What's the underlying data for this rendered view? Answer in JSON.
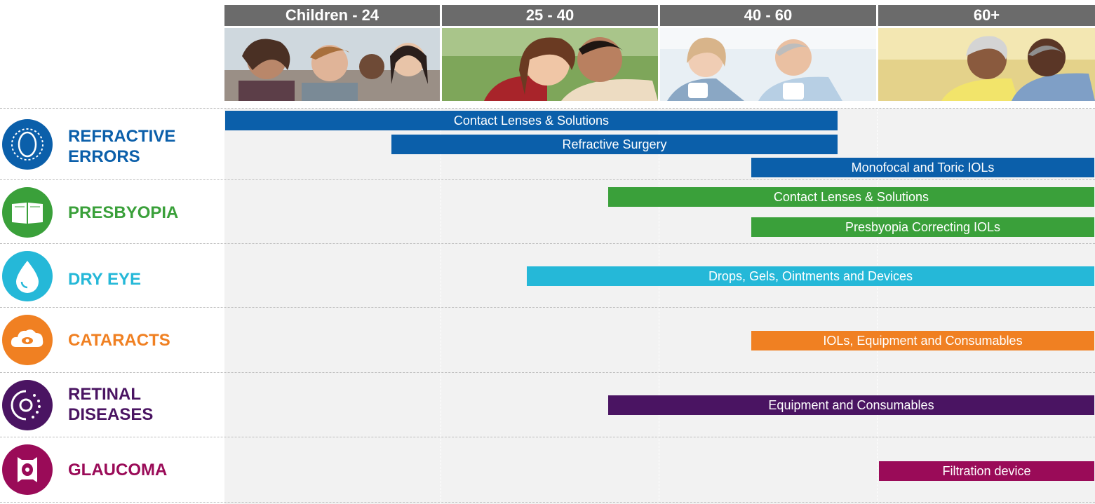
{
  "age_groups": [
    "Children - 24",
    "25 - 40",
    "40 - 60",
    "60+"
  ],
  "colors": {
    "refractive": "#0b5faa",
    "presbyopia": "#3aa03a",
    "dry_eye": "#25b8d8",
    "cataracts": "#f08022",
    "retinal": "#4a1462",
    "glaucoma": "#9a0b58"
  },
  "categories": [
    {
      "id": "refractive",
      "label": "REFRACTIVE\nERRORS",
      "icon": "refractive-eye-icon"
    },
    {
      "id": "presbyopia",
      "label": "PRESBYOPIA",
      "icon": "open-book-icon"
    },
    {
      "id": "dry_eye",
      "label": "DRY EYE",
      "icon": "droplet-icon"
    },
    {
      "id": "cataracts",
      "label": "CATARACTS",
      "icon": "cloud-eye-icon"
    },
    {
      "id": "retinal",
      "label": "RETINAL\nDISEASES",
      "icon": "retina-eye-icon"
    },
    {
      "id": "glaucoma",
      "label": "GLAUCOMA",
      "icon": "glaucoma-eye-icon"
    }
  ],
  "bars": [
    {
      "category": "refractive",
      "label": "Contact Lenses & Solutions"
    },
    {
      "category": "refractive",
      "label": "Refractive Surgery"
    },
    {
      "category": "refractive",
      "label": "Monofocal and Toric IOLs"
    },
    {
      "category": "presbyopia",
      "label": "Contact Lenses & Solutions"
    },
    {
      "category": "presbyopia",
      "label": "Presbyopia Correcting IOLs"
    },
    {
      "category": "dry_eye",
      "label": "Drops, Gels, Ointments and Devices"
    },
    {
      "category": "cataracts",
      "label": "IOLs, Equipment and Consumables"
    },
    {
      "category": "retinal",
      "label": "Equipment and Consumables"
    },
    {
      "category": "glaucoma",
      "label": "Filtration device"
    }
  ]
}
